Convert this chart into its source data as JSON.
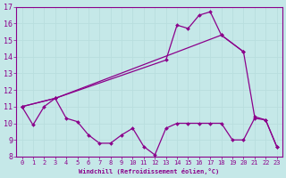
{
  "xlabel": "Windchill (Refroidissement éolien,°C)",
  "ylabel": "",
  "xlim": [
    -0.5,
    23.5
  ],
  "ylim": [
    8,
    17
  ],
  "yticks": [
    8,
    9,
    10,
    11,
    12,
    13,
    14,
    15,
    16,
    17
  ],
  "xticks": [
    0,
    1,
    2,
    3,
    4,
    5,
    6,
    7,
    8,
    9,
    10,
    11,
    12,
    13,
    14,
    15,
    16,
    17,
    18,
    19,
    20,
    21,
    22,
    23
  ],
  "bg_color": "#c5e8e8",
  "grid_color": "#d8f0f0",
  "line_color": "#8b008b",
  "lines": [
    {
      "x": [
        0,
        1,
        2,
        3,
        4,
        5,
        6,
        7,
        8,
        9,
        10,
        11,
        12,
        13,
        14,
        15,
        16,
        17,
        18,
        19,
        20,
        21,
        22,
        23
      ],
      "y": [
        11,
        9.9,
        11,
        11.5,
        10.3,
        10.1,
        9.3,
        8.8,
        8.8,
        9.3,
        9.7,
        8.6,
        8.1,
        9.7,
        10.0,
        10.0,
        10.0,
        10.0,
        10.0,
        9.0,
        9.0,
        10.3,
        10.2,
        8.6
      ]
    },
    {
      "x": [
        0,
        3,
        13,
        14,
        15,
        16,
        17,
        18,
        20,
        21,
        22,
        23
      ],
      "y": [
        11,
        11.5,
        13.8,
        15.9,
        15.7,
        16.5,
        16.7,
        15.3,
        14.3,
        10.4,
        10.2,
        8.6
      ]
    },
    {
      "x": [
        0,
        3,
        18,
        20
      ],
      "y": [
        11,
        11.5,
        15.3,
        14.3
      ]
    }
  ]
}
